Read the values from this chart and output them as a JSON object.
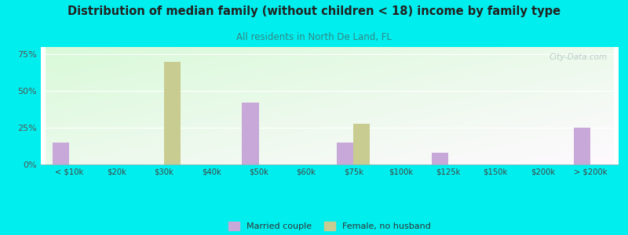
{
  "title": "Distribution of median family (without children < 18) income by family type",
  "subtitle": "All residents in North De Land, FL",
  "categories": [
    "< $10k",
    "$20k",
    "$30k",
    "$40k",
    "$50k",
    "$60k",
    "$75k",
    "$100k",
    "$125k",
    "$150k",
    "$200k",
    "> $200k"
  ],
  "married_couple": [
    15,
    0,
    0,
    0,
    42,
    0,
    15,
    0,
    8,
    0,
    0,
    25
  ],
  "female_no_husband": [
    0,
    0,
    70,
    0,
    0,
    0,
    28,
    0,
    0,
    0,
    0,
    0
  ],
  "bar_color_married": "#c8a8d8",
  "bar_color_female": "#c8cc90",
  "background_color": "#00eeee",
  "title_color": "#222222",
  "subtitle_color": "#338888",
  "ytick_labels": [
    "0%",
    "25%",
    "50%",
    "75%"
  ],
  "ytick_values": [
    0,
    25,
    50,
    75
  ],
  "ylim": [
    0,
    80
  ],
  "bar_width": 0.35,
  "watermark": "City-Data.com",
  "legend_married": "Married couple",
  "legend_female": "Female, no husband"
}
